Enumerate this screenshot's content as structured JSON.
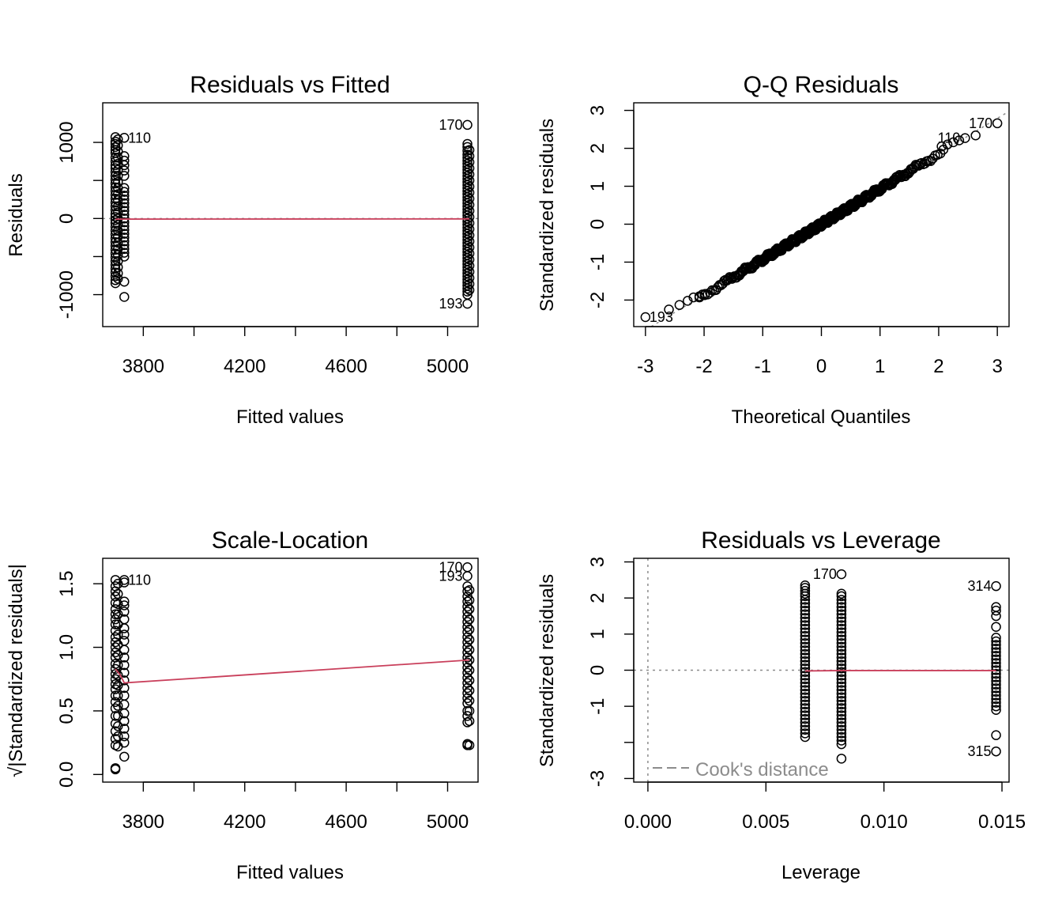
{
  "colors": {
    "smooth": "#c93f5b",
    "reference": "#8c8c8c",
    "points": "#000000"
  },
  "chart_data": [
    {
      "id": "rvf",
      "type": "scatter",
      "title": "Residuals vs Fitted",
      "xlabel": "Fitted values",
      "ylabel": "Residuals",
      "xlim": [
        3640,
        5120
      ],
      "ylim": [
        -1420,
        1520
      ],
      "xticks": [
        3800,
        4000,
        4200,
        4400,
        4600,
        4800,
        5000
      ],
      "xtick_labels": [
        "3800",
        "",
        "4200",
        "",
        "4600",
        "",
        "5000"
      ],
      "yticks": [
        -1000,
        -500,
        0,
        500,
        1000
      ],
      "ytick_labels": [
        "-1000",
        "",
        "0",
        "",
        "1000"
      ],
      "groups": [
        {
          "x": 3690,
          "y": [
            1070,
            1010,
            980,
            940,
            900,
            860,
            800,
            750,
            700,
            660,
            610,
            560,
            510,
            460,
            410,
            360,
            310,
            260,
            210,
            160,
            110,
            60,
            20,
            -20,
            -60,
            -110,
            -160,
            -210,
            -260,
            -310,
            -360,
            -410,
            -460,
            -510,
            -560,
            -610,
            -660,
            -710,
            -760,
            -810,
            -850
          ]
        },
        {
          "x": 3700,
          "y": [
            1040,
            960,
            880,
            800,
            720,
            640,
            560,
            480,
            400,
            320,
            240,
            160,
            80,
            0,
            -80,
            -160,
            -240,
            -320,
            -400,
            -480,
            -560,
            -640,
            -720,
            -790
          ]
        },
        {
          "x": 3725,
          "y": [
            1060,
            820,
            760,
            700,
            630,
            560,
            400,
            350,
            300,
            250,
            200,
            150,
            100,
            50,
            0,
            -50,
            -100,
            -150,
            -200,
            -250,
            -300,
            -350,
            -400,
            -450,
            -500,
            -830,
            -1030
          ]
        },
        {
          "x": 5078,
          "y": [
            1230,
            980,
            940,
            890,
            840,
            800,
            760,
            720,
            680,
            640,
            600,
            560,
            520,
            480,
            440,
            400,
            360,
            320,
            280,
            240,
            200,
            160,
            120,
            80,
            40,
            0,
            -40,
            -80,
            -120,
            -160,
            -200,
            -240,
            -280,
            -320,
            -360,
            -400,
            -440,
            -480,
            -520,
            -560,
            -600,
            -640,
            -680,
            -720,
            -760,
            -800,
            -840,
            -880,
            -920,
            -960,
            -1000,
            -1120
          ]
        },
        {
          "x": 5086,
          "y": [
            900,
            820,
            740,
            660,
            580,
            500,
            420,
            340,
            260,
            180,
            100,
            20,
            -60,
            -140,
            -220,
            -300,
            -380,
            -460,
            -540,
            -620,
            -700,
            -780,
            -860,
            -940
          ]
        }
      ],
      "refline": {
        "y": 0
      },
      "smooth": {
        "x": [
          3690,
          3725,
          5086
        ],
        "y": [
          -10,
          -8,
          -5
        ]
      },
      "labels": [
        {
          "text": "110",
          "x": 3725,
          "y": 1060,
          "pos": "right"
        },
        {
          "text": "170",
          "x": 5078,
          "y": 1230,
          "pos": "left"
        },
        {
          "text": "193",
          "x": 5078,
          "y": -1120,
          "pos": "left"
        }
      ]
    },
    {
      "id": "qq",
      "type": "scatter",
      "title": "Q-Q Residuals",
      "xlabel": "Theoretical Quantiles",
      "ylabel": "Standardized residuals",
      "xlim": [
        -3.2,
        3.2
      ],
      "ylim": [
        -2.7,
        3.2
      ],
      "xticks": [
        -3,
        -2,
        -1,
        0,
        1,
        2,
        3
      ],
      "xtick_labels": [
        "-3",
        "-2",
        "-1",
        "0",
        "1",
        "2",
        "3"
      ],
      "yticks": [
        -2,
        -1,
        0,
        1,
        2,
        3
      ],
      "ytick_labels": [
        "-2",
        "-1",
        "0",
        "1",
        "2",
        "3"
      ],
      "qq": {
        "n": 400,
        "sd": 0.93,
        "low_x": [
          -3.0,
          -2.6,
          -2.42,
          -2.28,
          -2.18,
          -2.08,
          -1.99
        ],
        "low_y": [
          -2.45,
          -2.25,
          -2.13,
          -2.02,
          -1.93,
          -1.9,
          -1.87
        ],
        "high_x": [
          2.05,
          2.15,
          2.25,
          2.35,
          2.45,
          2.63,
          3.0
        ],
        "high_y": [
          2.05,
          2.1,
          2.16,
          2.21,
          2.27,
          2.34,
          2.66
        ]
      },
      "refline": {
        "slope": 0.93,
        "intercept": 0.0
      },
      "labels": [
        {
          "text": "193",
          "x": -3.0,
          "y": -2.45,
          "pos": "right"
        },
        {
          "text": "110",
          "x": 2.45,
          "y": 2.27,
          "pos": "left"
        },
        {
          "text": "170",
          "x": 3.0,
          "y": 2.66,
          "pos": "left"
        }
      ]
    },
    {
      "id": "sl",
      "type": "scatter",
      "title": "Scale-Location",
      "xlabel": "Fitted values",
      "ylabel": "√|Standardized residuals|",
      "xlim": [
        3640,
        5120
      ],
      "ylim": [
        -0.06,
        1.7
      ],
      "xticks": [
        3800,
        4000,
        4200,
        4400,
        4600,
        4800,
        5000
      ],
      "xtick_labels": [
        "3800",
        "",
        "4200",
        "",
        "4600",
        "",
        "5000"
      ],
      "yticks": [
        0.0,
        0.5,
        1.0,
        1.5
      ],
      "ytick_labels": [
        "0.0",
        "0.5",
        "1.0",
        "1.5"
      ],
      "groups": [
        {
          "x": 3690,
          "y": [
            1.53,
            1.48,
            1.44,
            1.4,
            1.35,
            1.3,
            1.26,
            1.22,
            1.18,
            1.13,
            1.08,
            1.04,
            1.0,
            0.96,
            0.92,
            0.87,
            0.83,
            0.79,
            0.75,
            0.71,
            0.67,
            0.62,
            0.57,
            0.52,
            0.46,
            0.4,
            0.34,
            0.28,
            0.23,
            0.05,
            0.04
          ]
        },
        {
          "x": 3700,
          "y": [
            1.5,
            1.42,
            1.34,
            1.26,
            1.18,
            1.1,
            1.02,
            0.94,
            0.86,
            0.78,
            0.7,
            0.62,
            0.54,
            0.46,
            0.38,
            0.3,
            0.22
          ]
        },
        {
          "x": 3725,
          "y": [
            1.53,
            1.51,
            1.36,
            1.33,
            1.28,
            1.22,
            1.15,
            1.1,
            1.05,
            0.98,
            0.92,
            0.86,
            0.8,
            0.74,
            0.68,
            0.62,
            0.55,
            0.48,
            0.42,
            0.36,
            0.3,
            0.25,
            0.14
          ]
        },
        {
          "x": 5078,
          "y": [
            1.63,
            1.56,
            1.48,
            1.44,
            1.4,
            1.36,
            1.32,
            1.28,
            1.24,
            1.2,
            1.16,
            1.12,
            1.08,
            1.04,
            1.0,
            0.96,
            0.92,
            0.88,
            0.84,
            0.8,
            0.76,
            0.72,
            0.68,
            0.64,
            0.6,
            0.56,
            0.5,
            0.46,
            0.41,
            0.24,
            0.23
          ]
        },
        {
          "x": 5086,
          "y": [
            1.45,
            1.37,
            1.3,
            1.22,
            1.14,
            1.06,
            0.98,
            0.9,
            0.82,
            0.74,
            0.66,
            0.58,
            0.5,
            0.42,
            0.23
          ]
        }
      ],
      "smooth": {
        "x": [
          3690,
          3710,
          3725,
          5086
        ],
        "y": [
          0.83,
          0.78,
          0.72,
          0.9
        ]
      },
      "labels": [
        {
          "text": "110",
          "x": 3725,
          "y": 1.53,
          "pos": "right"
        },
        {
          "text": "170",
          "x": 5078,
          "y": 1.63,
          "pos": "left"
        },
        {
          "text": "193",
          "x": 5078,
          "y": 1.56,
          "pos": "left"
        }
      ]
    },
    {
      "id": "rvl",
      "type": "scatter",
      "title": "Residuals vs Leverage",
      "xlabel": "Leverage",
      "ylabel": "Standardized residuals",
      "xlim": [
        -0.0006,
        0.0153
      ],
      "ylim": [
        -3.1,
        3.1
      ],
      "xticks": [
        0.0,
        0.005,
        0.01,
        0.015
      ],
      "xtick_labels": [
        "0.000",
        "0.005",
        "0.010",
        "0.015"
      ],
      "yticks": [
        -3,
        -2,
        -1,
        0,
        1,
        2,
        3
      ],
      "ytick_labels": [
        "-3",
        "",
        "-1",
        "0",
        "1",
        "2",
        "3"
      ],
      "groups": [
        {
          "x": 0.00666,
          "y": [
            2.35,
            2.28,
            2.2,
            2.12,
            2.05,
            1.95,
            1.85,
            1.75,
            1.65,
            1.55,
            1.45,
            1.35,
            1.25,
            1.15,
            1.05,
            0.95,
            0.85,
            0.75,
            0.65,
            0.55,
            0.45,
            0.35,
            0.25,
            0.15,
            0.05,
            -0.05,
            -0.15,
            -0.25,
            -0.35,
            -0.45,
            -0.55,
            -0.65,
            -0.75,
            -0.85,
            -0.95,
            -1.05,
            -1.15,
            -1.25,
            -1.35,
            -1.45,
            -1.55,
            -1.65,
            -1.75,
            -1.85
          ]
        },
        {
          "x": 0.0082,
          "y": [
            2.66,
            2.12,
            2.05,
            1.95,
            1.85,
            1.75,
            1.65,
            1.55,
            1.45,
            1.35,
            1.25,
            1.15,
            1.05,
            0.95,
            0.85,
            0.75,
            0.65,
            0.55,
            0.45,
            0.35,
            0.25,
            0.15,
            0.05,
            -0.05,
            -0.15,
            -0.25,
            -0.35,
            -0.45,
            -0.55,
            -0.65,
            -0.75,
            -0.85,
            -0.95,
            -1.05,
            -1.15,
            -1.25,
            -1.35,
            -1.45,
            -1.55,
            -1.65,
            -1.75,
            -1.85,
            -1.95,
            -2.05,
            -2.45
          ]
        },
        {
          "x": 0.01475,
          "y": [
            2.33,
            1.75,
            1.65,
            1.5,
            1.2,
            0.9,
            0.8,
            0.7,
            0.6,
            0.5,
            0.4,
            0.3,
            0.2,
            0.1,
            0.0,
            -0.1,
            -0.2,
            -0.3,
            -0.4,
            -0.5,
            -0.6,
            -0.7,
            -0.8,
            -0.9,
            -1.0,
            -1.1,
            -1.8,
            -2.25
          ]
        }
      ],
      "refline": {
        "y": 0,
        "x": 0
      },
      "smooth": {
        "x": [
          0.00666,
          0.0082,
          0.01475
        ],
        "y": [
          -0.02,
          -0.01,
          -0.01
        ]
      },
      "labels": [
        {
          "text": "170",
          "x": 0.0082,
          "y": 2.66,
          "pos": "left"
        },
        {
          "text": "314",
          "x": 0.01475,
          "y": 2.33,
          "pos": "left"
        },
        {
          "text": "315",
          "x": 0.01475,
          "y": -2.25,
          "pos": "left"
        }
      ],
      "legend": {
        "text": "Cook's distance",
        "position": "bottom-left"
      }
    }
  ]
}
